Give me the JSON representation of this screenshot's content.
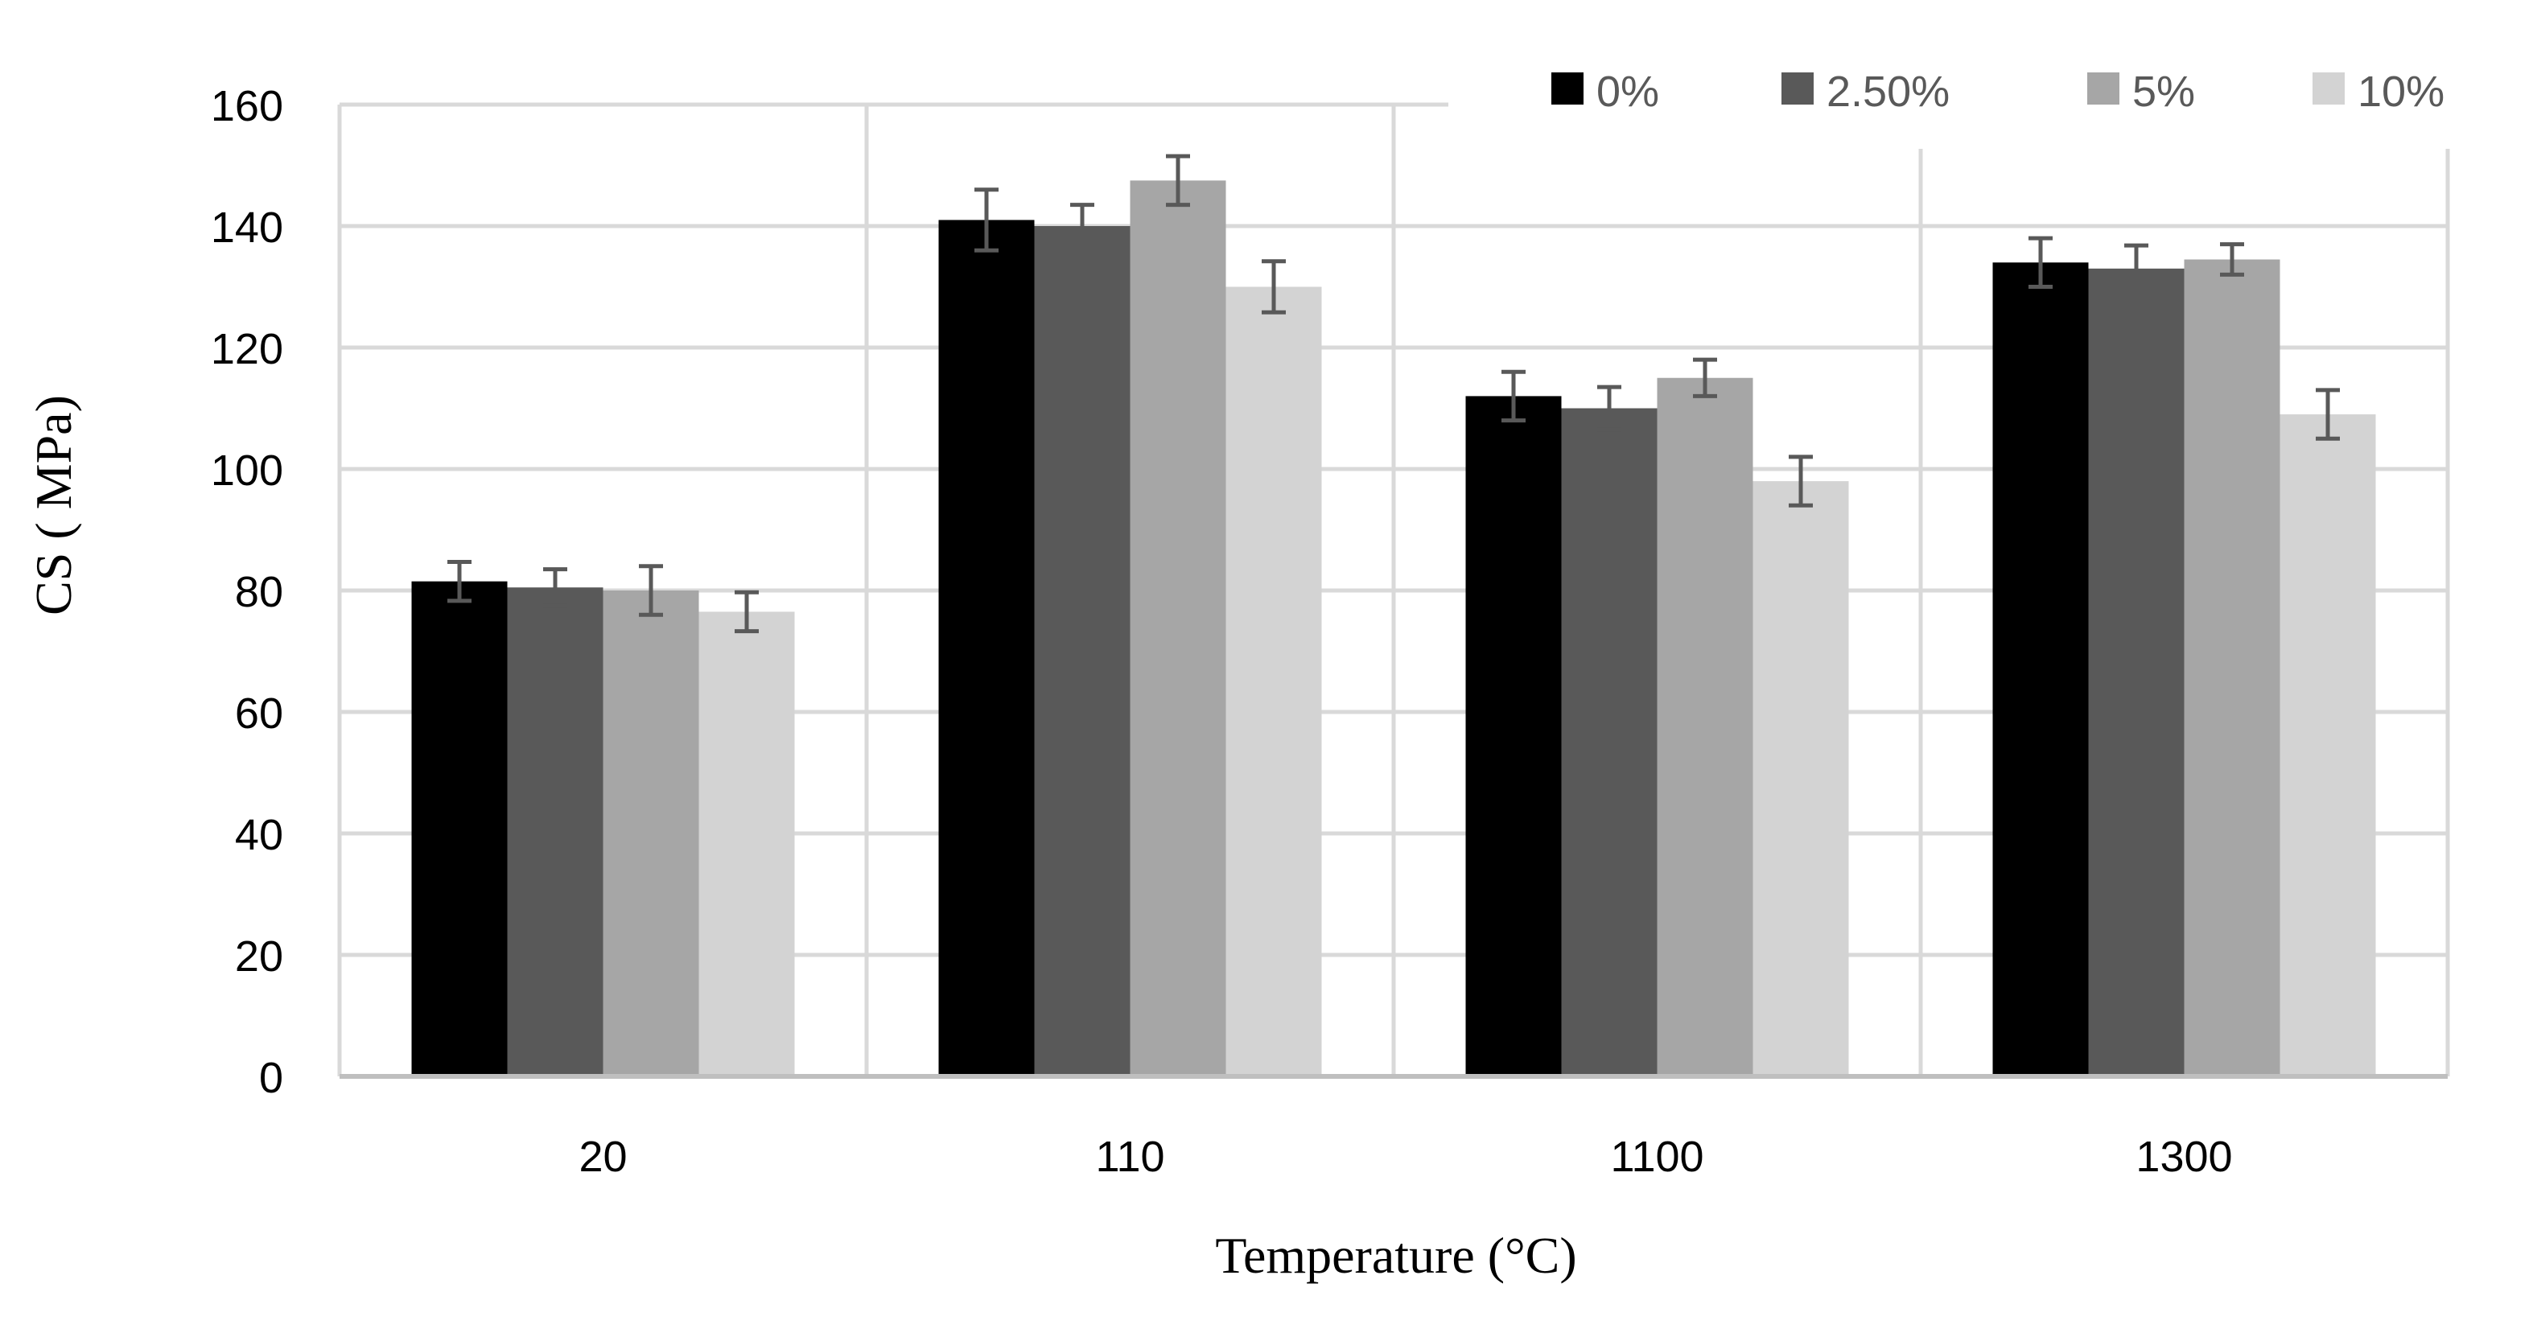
{
  "chart_data": {
    "type": "bar",
    "title": "",
    "xlabel": "Temperature (°C)",
    "ylabel": "CS ( MPa)",
    "ylim": [
      0,
      160
    ],
    "yticks": [
      "0",
      "20",
      "40",
      "60",
      "80",
      "100",
      "120",
      "140",
      "160"
    ],
    "categories": [
      "20",
      "110",
      "1100",
      "1300"
    ],
    "series": [
      {
        "name": "0%",
        "color": "#000000",
        "values": [
          81.5,
          141,
          112,
          134
        ],
        "errors": [
          3.2,
          5,
          4,
          4
        ]
      },
      {
        "name": "2.50%",
        "color": "#595959",
        "values": [
          80.5,
          140,
          110,
          133
        ],
        "errors": [
          3,
          3.5,
          3.5,
          3.8
        ]
      },
      {
        "name": "5%",
        "color": "#a6a6a6",
        "values": [
          80,
          147.5,
          115,
          134.5
        ],
        "errors": [
          4,
          4,
          3,
          2.5
        ]
      },
      {
        "name": "10%",
        "color": "#d3d3d3",
        "values": [
          76.5,
          130,
          98,
          109
        ],
        "errors": [
          3.2,
          4.2,
          4,
          4
        ]
      }
    ],
    "error_bar_color": "#595959",
    "grid": true,
    "legend_position": "top-right"
  }
}
